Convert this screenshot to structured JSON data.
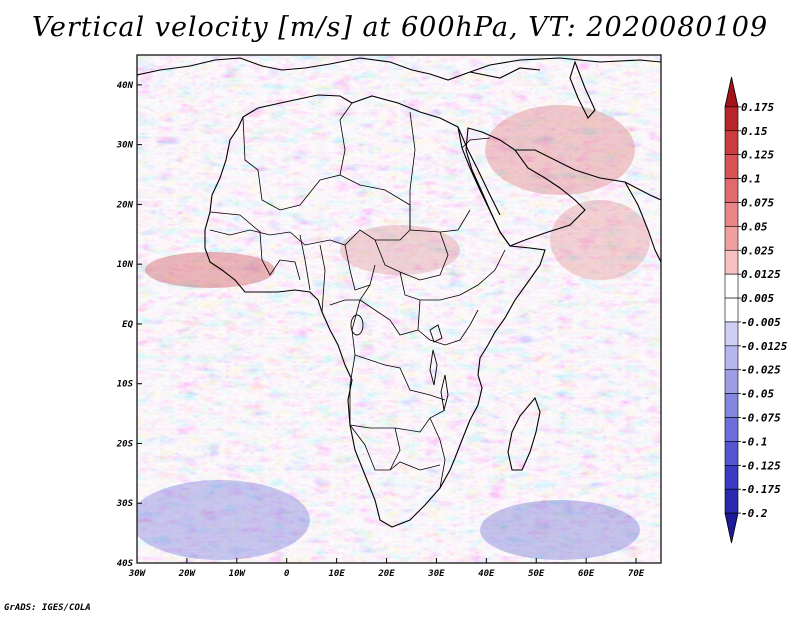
{
  "title": "Vertical velocity [m/s] at 600hPa, VT: 2020080109",
  "footer": "GrADS: IGES/COLA",
  "map": {
    "lat_labels": [
      "40N",
      "30N",
      "20N",
      "10N",
      "EQ",
      "10S",
      "20S",
      "30S",
      "40S"
    ],
    "lon_labels": [
      "30W",
      "20W",
      "10W",
      "0",
      "10E",
      "20E",
      "30E",
      "40E",
      "50E",
      "60E",
      "70E"
    ],
    "lat_range": [
      -40,
      45
    ],
    "lon_range": [
      -30,
      75
    ]
  },
  "colorbar": {
    "labels": [
      "0.175",
      "0.15",
      "0.125",
      "0.1",
      "0.075",
      "0.05",
      "0.025",
      "0.0125",
      "0.005",
      "-0.005",
      "-0.0125",
      "-0.025",
      "-0.05",
      "-0.075",
      "-0.1",
      "-0.125",
      "-0.175",
      "-0.2"
    ],
    "colors": [
      "#a31418",
      "#b9262a",
      "#cb3c3f",
      "#d95356",
      "#e26a6c",
      "#ea8486",
      "#f1a0a1",
      "#f7c0c1",
      "#ffffff",
      "#ffffff",
      "#cfcff5",
      "#b6b6ef",
      "#9d9de8",
      "#8585e2",
      "#6d6ddb",
      "#5555d2",
      "#3a3ac4",
      "#2a2ab0",
      "#1c1c9a"
    ]
  }
}
